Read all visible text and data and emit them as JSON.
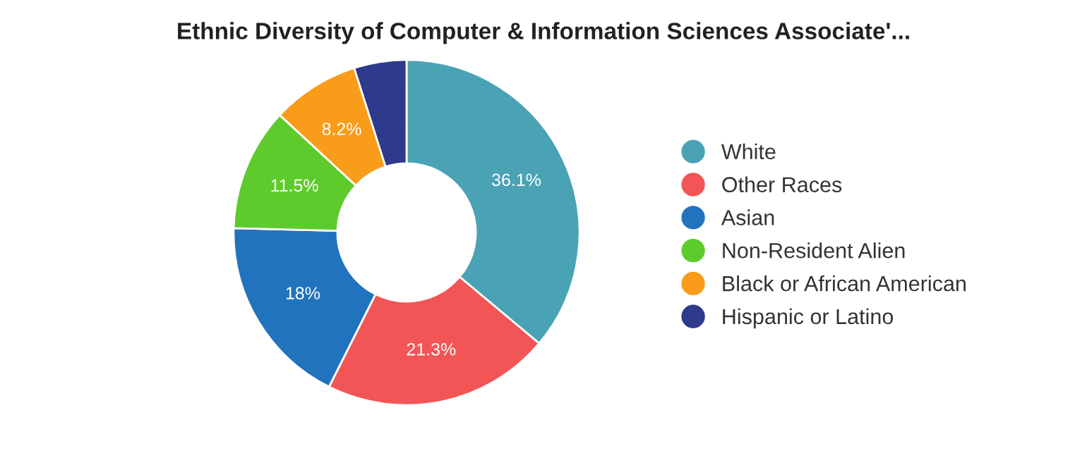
{
  "chart_data": {
    "type": "donut",
    "title": "Ethnic Diversity of Computer & Information Sciences Associate'...",
    "categories": [
      "White",
      "Other Races",
      "Asian",
      "Non-Resident Alien",
      "Black or African American",
      "Hispanic or Latino"
    ],
    "values": [
      36.1,
      21.3,
      18,
      11.5,
      8.2,
      4.9
    ],
    "colors": [
      "#4aa3b5",
      "#f25555",
      "#2173bd",
      "#5ecb2c",
      "#f89c1a",
      "#2e3a8c"
    ],
    "value_labels": [
      "36.1%",
      "21.3%",
      "18%",
      "11.5%",
      "8.2%",
      null
    ],
    "legend": "right"
  }
}
